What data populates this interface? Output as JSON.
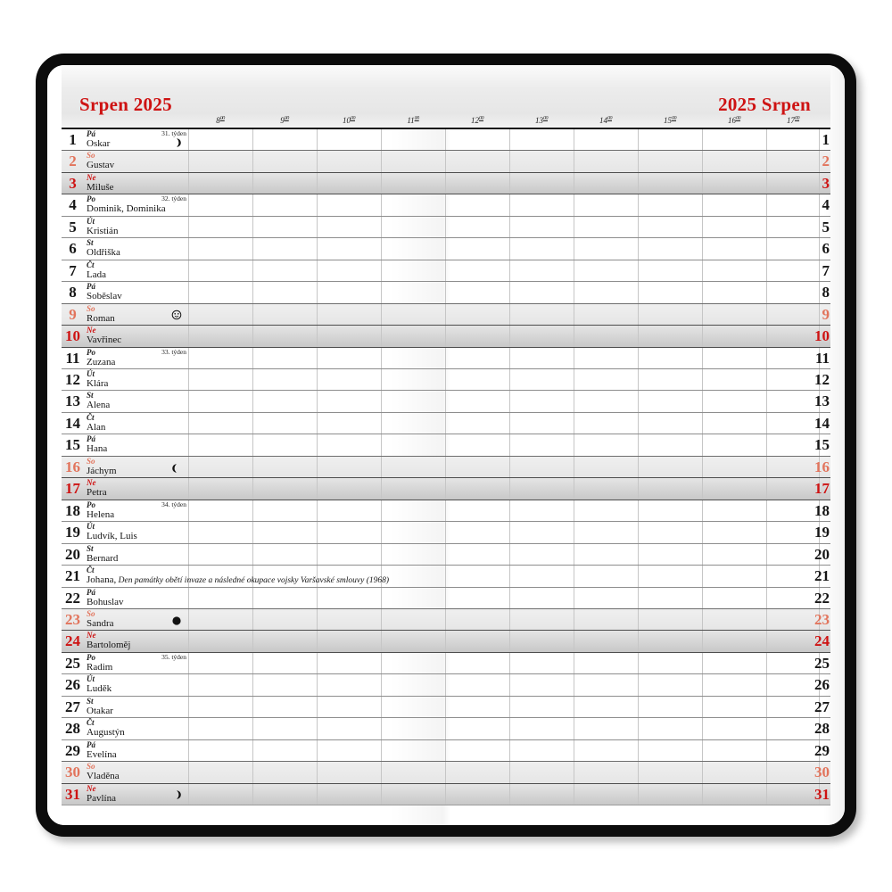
{
  "page": {
    "title_left": "Srpen 2025",
    "title_right": "2025 Srpen",
    "time_labels": [
      "8",
      "9",
      "10",
      "11",
      "12",
      "13",
      "14",
      "15",
      "16",
      "17"
    ],
    "time_superscript": "00"
  },
  "colors": {
    "accent_red": "#ce1212",
    "saturday_red": "#e2745c"
  },
  "days": [
    {
      "num": "1",
      "dow": "Pá",
      "type": "weekday",
      "name": "Oskar",
      "week": "31. týden",
      "moon": "first-quarter"
    },
    {
      "num": "2",
      "dow": "So",
      "type": "saturday",
      "name": "Gustav"
    },
    {
      "num": "3",
      "dow": "Ne",
      "type": "sunday",
      "name": "Miluše"
    },
    {
      "num": "4",
      "dow": "Po",
      "type": "weekday",
      "name": "Dominik, Dominika",
      "week": "32. týden"
    },
    {
      "num": "5",
      "dow": "Út",
      "type": "weekday",
      "name": "Kristián"
    },
    {
      "num": "6",
      "dow": "St",
      "type": "weekday",
      "name": "Oldřiška"
    },
    {
      "num": "7",
      "dow": "Čt",
      "type": "weekday",
      "name": "Lada"
    },
    {
      "num": "8",
      "dow": "Pá",
      "type": "weekday",
      "name": "Soběslav"
    },
    {
      "num": "9",
      "dow": "So",
      "type": "saturday",
      "name": "Roman",
      "moon": "full"
    },
    {
      "num": "10",
      "dow": "Ne",
      "type": "sunday",
      "name": "Vavřinec"
    },
    {
      "num": "11",
      "dow": "Po",
      "type": "weekday",
      "name": "Zuzana",
      "week": "33. týden"
    },
    {
      "num": "12",
      "dow": "Út",
      "type": "weekday",
      "name": "Klára"
    },
    {
      "num": "13",
      "dow": "St",
      "type": "weekday",
      "name": "Alena"
    },
    {
      "num": "14",
      "dow": "Čt",
      "type": "weekday",
      "name": "Alan"
    },
    {
      "num": "15",
      "dow": "Pá",
      "type": "weekday",
      "name": "Hana"
    },
    {
      "num": "16",
      "dow": "So",
      "type": "saturday",
      "name": "Jáchym",
      "moon": "last-quarter"
    },
    {
      "num": "17",
      "dow": "Ne",
      "type": "sunday",
      "name": "Petra"
    },
    {
      "num": "18",
      "dow": "Po",
      "type": "weekday",
      "name": "Helena",
      "week": "34. týden"
    },
    {
      "num": "19",
      "dow": "Út",
      "type": "weekday",
      "name": "Ludvík, Luis"
    },
    {
      "num": "20",
      "dow": "St",
      "type": "weekday",
      "name": "Bernard"
    },
    {
      "num": "21",
      "dow": "Čt",
      "type": "weekday",
      "name": "Johana,",
      "note": "Den památky obětí invaze a následné okupace vojsky Varšavské smlouvy (1968)"
    },
    {
      "num": "22",
      "dow": "Pá",
      "type": "weekday",
      "name": "Bohuslav"
    },
    {
      "num": "23",
      "dow": "So",
      "type": "saturday",
      "name": "Sandra",
      "moon": "new"
    },
    {
      "num": "24",
      "dow": "Ne",
      "type": "sunday",
      "name": "Bartoloměj"
    },
    {
      "num": "25",
      "dow": "Po",
      "type": "weekday",
      "name": "Radim",
      "week": "35. týden"
    },
    {
      "num": "26",
      "dow": "Út",
      "type": "weekday",
      "name": "Luděk"
    },
    {
      "num": "27",
      "dow": "St",
      "type": "weekday",
      "name": "Otakar"
    },
    {
      "num": "28",
      "dow": "Čt",
      "type": "weekday",
      "name": "Augustýn"
    },
    {
      "num": "29",
      "dow": "Pá",
      "type": "weekday",
      "name": "Evelína"
    },
    {
      "num": "30",
      "dow": "So",
      "type": "saturday",
      "name": "Vladěna"
    },
    {
      "num": "31",
      "dow": "Ne",
      "type": "sunday",
      "name": "Pavlína",
      "moon": "first-quarter"
    }
  ]
}
